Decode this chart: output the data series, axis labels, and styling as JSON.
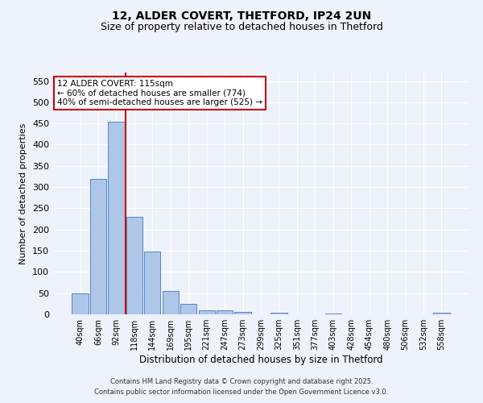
{
  "title1": "12, ALDER COVERT, THETFORD, IP24 2UN",
  "title2": "Size of property relative to detached houses in Thetford",
  "xlabel": "Distribution of detached houses by size in Thetford",
  "ylabel": "Number of detached properties",
  "categories": [
    "40sqm",
    "66sqm",
    "92sqm",
    "118sqm",
    "144sqm",
    "169sqm",
    "195sqm",
    "221sqm",
    "247sqm",
    "273sqm",
    "299sqm",
    "325sqm",
    "351sqm",
    "377sqm",
    "403sqm",
    "428sqm",
    "454sqm",
    "480sqm",
    "506sqm",
    "532sqm",
    "558sqm"
  ],
  "values": [
    50,
    320,
    455,
    230,
    148,
    55,
    25,
    10,
    10,
    5,
    0,
    4,
    0,
    0,
    2,
    0,
    0,
    0,
    0,
    0,
    3
  ],
  "bar_color": "#aec6e8",
  "bar_edge_color": "#5585c5",
  "vline_color": "#cc0000",
  "annotation_text": "12 ALDER COVERT: 115sqm\n← 60% of detached houses are smaller (774)\n40% of semi-detached houses are larger (525) →",
  "annotation_box_color": "#ffffff",
  "annotation_box_edge": "#cc0000",
  "ylim": [
    0,
    570
  ],
  "yticks": [
    0,
    50,
    100,
    150,
    200,
    250,
    300,
    350,
    400,
    450,
    500,
    550
  ],
  "bg_color": "#eef2fb",
  "grid_color": "#ffffff",
  "footer1": "Contains HM Land Registry data © Crown copyright and database right 2025.",
  "footer2": "Contains public sector information licensed under the Open Government Licence v3.0."
}
